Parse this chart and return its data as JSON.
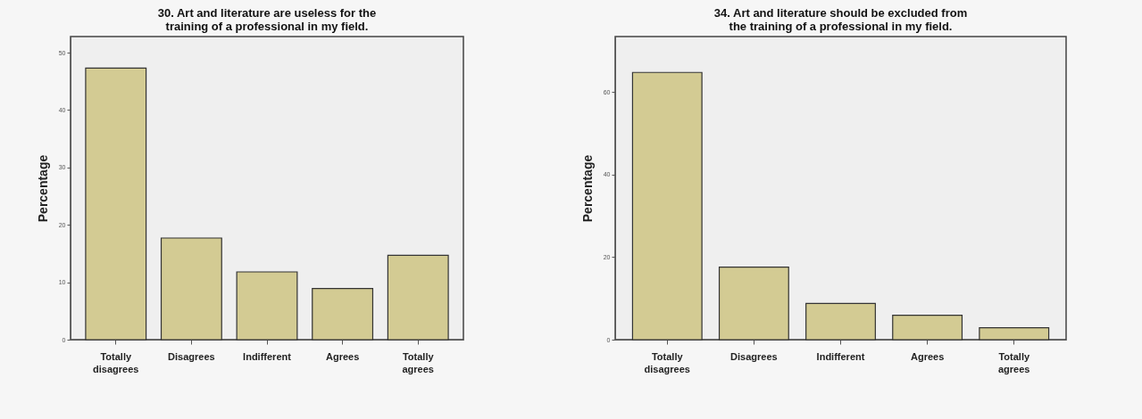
{
  "chart_data": [
    {
      "type": "bar",
      "title": "30. Art and literature are useless for the training of a professional in my field.",
      "ylabel": "Percentage",
      "categories": [
        "Totally disagrees",
        "Disagrees",
        "Indifferent",
        "Agrees",
        "Totally agrees"
      ],
      "values": [
        47.3,
        17.7,
        11.8,
        8.9,
        14.7
      ],
      "color": "#d3cb93",
      "ylim": [
        0,
        52.8
      ],
      "yticks": [
        0,
        10,
        20,
        30,
        40,
        50
      ],
      "grid": false
    },
    {
      "type": "bar",
      "title": "34. Art and literature should be excluded from the training of a professional in my field.",
      "ylabel": "Percentage",
      "categories": [
        "Totally disagrees",
        "Disagrees",
        "Indifferent",
        "Agrees",
        "Totally agrees"
      ],
      "values": [
        64.8,
        17.6,
        8.8,
        5.9,
        2.9
      ],
      "color": "#d3cb93",
      "ylim": [
        0,
        73.5
      ],
      "yticks": [
        0,
        20,
        40,
        60
      ],
      "grid": false
    }
  ]
}
